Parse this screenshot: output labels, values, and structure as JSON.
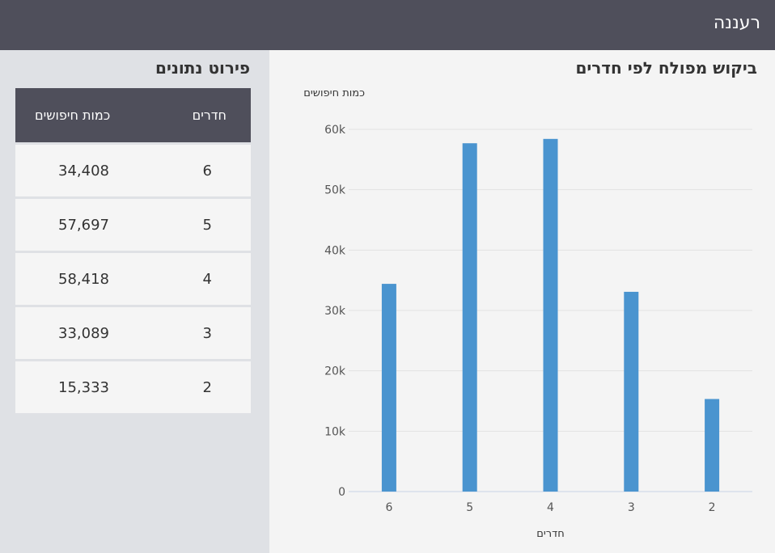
{
  "header": {
    "title": "רעננה"
  },
  "table": {
    "title": "פירוט נתונים",
    "col_rooms": "חדרים",
    "col_count": "כמות חיפושים",
    "rows": [
      {
        "rooms": "6",
        "count": "34,408"
      },
      {
        "rooms": "5",
        "count": "57,697"
      },
      {
        "rooms": "4",
        "count": "58,418"
      },
      {
        "rooms": "3",
        "count": "33,089"
      },
      {
        "rooms": "2",
        "count": "15,333"
      }
    ]
  },
  "chart_data": {
    "type": "bar",
    "title": "ביקוש מפולח לפי חדרים",
    "xlabel": "חדרים",
    "ylabel": "כמות חיפושים",
    "categories": [
      "6",
      "5",
      "4",
      "3",
      "2"
    ],
    "values": [
      34408,
      57697,
      58418,
      33089,
      15333
    ],
    "ylim": [
      0,
      60000
    ],
    "yticks": [
      0,
      10000,
      20000,
      30000,
      40000,
      50000,
      60000
    ],
    "ytick_labels": [
      "0",
      "10k",
      "20k",
      "30k",
      "40k",
      "50k",
      "60k"
    ],
    "bar_color": "#4a94cf",
    "grid": true
  }
}
